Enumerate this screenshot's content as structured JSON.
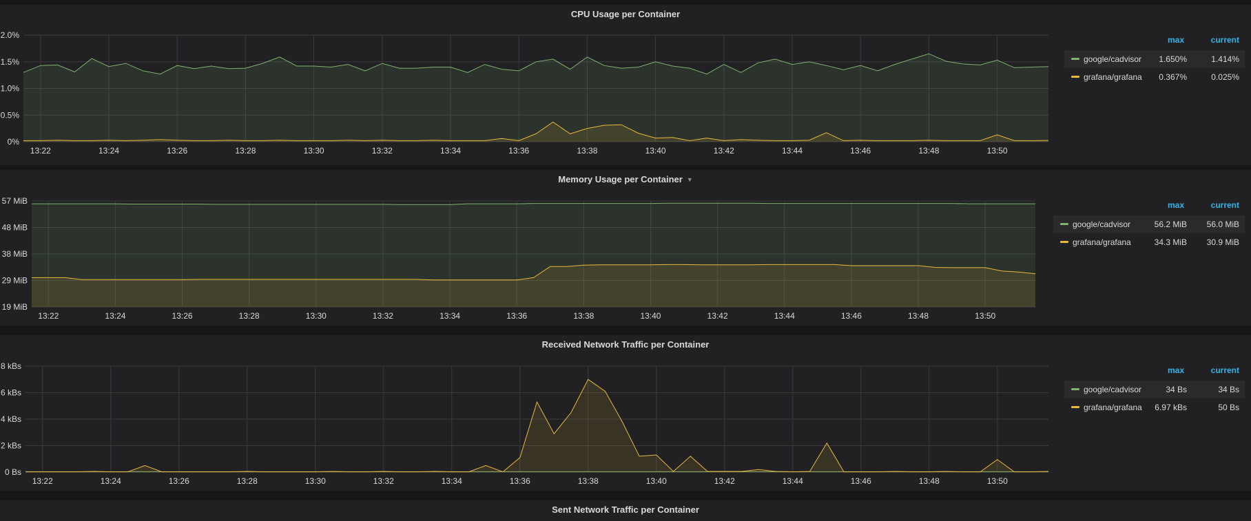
{
  "panels": [
    {
      "id": "cpu",
      "title": "CPU Usage per Container",
      "has_dropdown": false,
      "x_ticks": [
        "13:22",
        "13:24",
        "13:26",
        "13:28",
        "13:30",
        "13:32",
        "13:34",
        "13:36",
        "13:38",
        "13:40",
        "13:42",
        "13:44",
        "13:46",
        "13:48",
        "13:50"
      ],
      "y_ticks": [
        "0%",
        "0.5%",
        "1.0%",
        "1.5%",
        "2.0%"
      ],
      "legend": {
        "max_label": "max",
        "current_label": "current",
        "items": [
          {
            "name": "google/cadvisor",
            "max": "1.650%",
            "current": "1.414%",
            "color": "#7eb26d"
          },
          {
            "name": "grafana/grafana",
            "max": "0.367%",
            "current": "0.025%",
            "color": "#eab839"
          }
        ]
      }
    },
    {
      "id": "memory",
      "title": "Memory Usage per Container",
      "has_dropdown": true,
      "x_ticks": [
        "13:22",
        "13:24",
        "13:26",
        "13:28",
        "13:30",
        "13:32",
        "13:34",
        "13:36",
        "13:38",
        "13:40",
        "13:42",
        "13:44",
        "13:46",
        "13:48",
        "13:50"
      ],
      "y_ticks": [
        "19 MiB",
        "29 MiB",
        "38 MiB",
        "48 MiB",
        "57 MiB"
      ],
      "legend": {
        "max_label": "max",
        "current_label": "current",
        "items": [
          {
            "name": "google/cadvisor",
            "max": "56.2 MiB",
            "current": "56.0 MiB",
            "color": "#7eb26d"
          },
          {
            "name": "grafana/grafana",
            "max": "34.3 MiB",
            "current": "30.9 MiB",
            "color": "#eab839"
          }
        ]
      }
    },
    {
      "id": "rx",
      "title": "Received Network Traffic per Container",
      "has_dropdown": false,
      "x_ticks": [
        "13:22",
        "13:24",
        "13:26",
        "13:28",
        "13:30",
        "13:32",
        "13:34",
        "13:36",
        "13:38",
        "13:40",
        "13:42",
        "13:44",
        "13:46",
        "13:48",
        "13:50"
      ],
      "y_ticks": [
        "0 Bs",
        "2 kBs",
        "4 kBs",
        "6 kBs",
        "8 kBs"
      ],
      "legend": {
        "max_label": "max",
        "current_label": "current",
        "items": [
          {
            "name": "google/cadvisor",
            "max": "34 Bs",
            "current": "34 Bs",
            "color": "#7eb26d"
          },
          {
            "name": "grafana/grafana",
            "max": "6.97 kBs",
            "current": "50 Bs",
            "color": "#eab839"
          }
        ]
      }
    },
    {
      "id": "tx",
      "title": "Sent Network Traffic per Container",
      "has_dropdown": false
    }
  ],
  "chart_data": [
    {
      "type": "area",
      "title": "CPU Usage per Container",
      "x_label_start": "13:21:30",
      "x_range_minutes": [
        0,
        30
      ],
      "ylim": [
        0,
        2.0
      ],
      "y_unit": "%",
      "grid": true,
      "legend_placement": "right",
      "series": [
        {
          "name": "google/cadvisor",
          "color": "#7eb26d",
          "values": [
            1.3,
            1.43,
            1.44,
            1.31,
            1.56,
            1.41,
            1.47,
            1.33,
            1.27,
            1.43,
            1.37,
            1.42,
            1.37,
            1.38,
            1.47,
            1.59,
            1.42,
            1.42,
            1.4,
            1.45,
            1.33,
            1.47,
            1.38,
            1.38,
            1.4,
            1.4,
            1.3,
            1.45,
            1.36,
            1.33,
            1.5,
            1.55,
            1.36,
            1.59,
            1.43,
            1.38,
            1.4,
            1.5,
            1.42,
            1.38,
            1.27,
            1.45,
            1.3,
            1.48,
            1.55,
            1.45,
            1.5,
            1.43,
            1.35,
            1.43,
            1.33,
            1.45,
            1.55,
            1.65,
            1.51,
            1.46,
            1.44,
            1.53,
            1.39,
            1.4,
            1.41
          ]
        },
        {
          "name": "grafana/grafana",
          "color": "#eab839",
          "values": [
            0.02,
            0.02,
            0.03,
            0.02,
            0.02,
            0.03,
            0.02,
            0.03,
            0.04,
            0.03,
            0.02,
            0.02,
            0.03,
            0.02,
            0.02,
            0.03,
            0.02,
            0.02,
            0.02,
            0.03,
            0.02,
            0.03,
            0.02,
            0.02,
            0.03,
            0.02,
            0.02,
            0.02,
            0.06,
            0.02,
            0.15,
            0.37,
            0.15,
            0.25,
            0.31,
            0.32,
            0.16,
            0.07,
            0.08,
            0.02,
            0.07,
            0.02,
            0.04,
            0.03,
            0.02,
            0.02,
            0.03,
            0.17,
            0.02,
            0.03,
            0.02,
            0.02,
            0.02,
            0.03,
            0.02,
            0.02,
            0.02,
            0.13,
            0.02,
            0.02,
            0.025
          ]
        }
      ]
    },
    {
      "type": "area",
      "title": "Memory Usage per Container",
      "x_label_start": "13:21:30",
      "x_range_minutes": [
        0,
        30
      ],
      "ylim": [
        19,
        57
      ],
      "y_unit": "MiB",
      "grid": true,
      "legend_placement": "right",
      "series": [
        {
          "name": "google/cadvisor",
          "color": "#7eb26d",
          "values": [
            56.0,
            56.0,
            56.0,
            56.0,
            56.0,
            56.0,
            55.9,
            55.9,
            55.9,
            55.9,
            55.9,
            55.8,
            55.8,
            55.8,
            55.8,
            55.8,
            55.8,
            55.8,
            55.8,
            55.8,
            55.8,
            55.8,
            55.7,
            55.7,
            55.7,
            55.7,
            56.0,
            56.0,
            56.0,
            56.0,
            56.1,
            56.1,
            56.1,
            56.1,
            56.1,
            56.1,
            56.1,
            56.1,
            56.2,
            56.2,
            56.2,
            56.2,
            56.2,
            56.2,
            56.1,
            56.1,
            56.1,
            56.1,
            56.1,
            56.1,
            56.1,
            56.1,
            56.1,
            56.1,
            56.1,
            56.1,
            56.0,
            56.0,
            56.0,
            56.0,
            56.0
          ]
        },
        {
          "name": "grafana/grafana",
          "color": "#eab839",
          "values": [
            29.5,
            29.5,
            29.5,
            28.8,
            28.8,
            28.8,
            28.8,
            28.8,
            28.8,
            28.8,
            28.9,
            28.9,
            28.9,
            28.9,
            28.9,
            28.9,
            28.9,
            28.9,
            28.9,
            28.9,
            28.9,
            28.9,
            28.9,
            28.9,
            28.7,
            28.7,
            28.7,
            28.7,
            28.7,
            28.7,
            29.5,
            33.5,
            33.5,
            34.0,
            34.1,
            34.1,
            34.1,
            34.1,
            34.2,
            34.2,
            34.1,
            34.1,
            34.1,
            34.1,
            34.2,
            34.2,
            34.2,
            34.2,
            34.2,
            33.8,
            33.8,
            33.8,
            33.8,
            33.8,
            33.2,
            33.1,
            33.1,
            33.1,
            31.9,
            31.5,
            30.9
          ]
        }
      ]
    },
    {
      "type": "area",
      "title": "Received Network Traffic per Container",
      "x_label_start": "13:21:30",
      "x_range_minutes": [
        0,
        30
      ],
      "ylim": [
        0,
        8
      ],
      "y_unit": "kBs",
      "grid": true,
      "legend_placement": "right",
      "series": [
        {
          "name": "google/cadvisor",
          "color": "#7eb26d",
          "values": [
            0.03,
            0.03,
            0.03,
            0.03,
            0.03,
            0.03,
            0.03,
            0.03,
            0.03,
            0.03,
            0.03,
            0.03,
            0.03,
            0.03,
            0.03,
            0.03,
            0.03,
            0.03,
            0.03,
            0.03,
            0.03,
            0.03,
            0.03,
            0.03,
            0.03,
            0.03,
            0.03,
            0.03,
            0.03,
            0.03,
            0.03,
            0.03,
            0.03,
            0.03,
            0.03,
            0.03,
            0.03,
            0.03,
            0.03,
            0.03,
            0.03,
            0.03,
            0.03,
            0.03,
            0.03,
            0.03,
            0.03,
            0.03,
            0.03,
            0.03,
            0.03,
            0.03,
            0.03,
            0.03,
            0.03,
            0.03,
            0.03,
            0.03,
            0.03,
            0.03,
            0.03
          ]
        },
        {
          "name": "grafana/grafana",
          "color": "#eab839",
          "values": [
            0.02,
            0.02,
            0.02,
            0.02,
            0.05,
            0.02,
            0.02,
            0.5,
            0.02,
            0.02,
            0.02,
            0.02,
            0.02,
            0.05,
            0.02,
            0.02,
            0.02,
            0.02,
            0.05,
            0.02,
            0.02,
            0.05,
            0.02,
            0.02,
            0.05,
            0.02,
            0.02,
            0.5,
            0.02,
            1.1,
            5.3,
            2.9,
            4.5,
            7.0,
            6.1,
            3.8,
            1.2,
            1.3,
            0.05,
            1.2,
            0.05,
            0.05,
            0.05,
            0.2,
            0.05,
            0.02,
            0.05,
            2.2,
            0.02,
            0.02,
            0.02,
            0.05,
            0.02,
            0.02,
            0.05,
            0.02,
            0.02,
            0.95,
            0.02,
            0.02,
            0.05
          ]
        }
      ]
    }
  ]
}
